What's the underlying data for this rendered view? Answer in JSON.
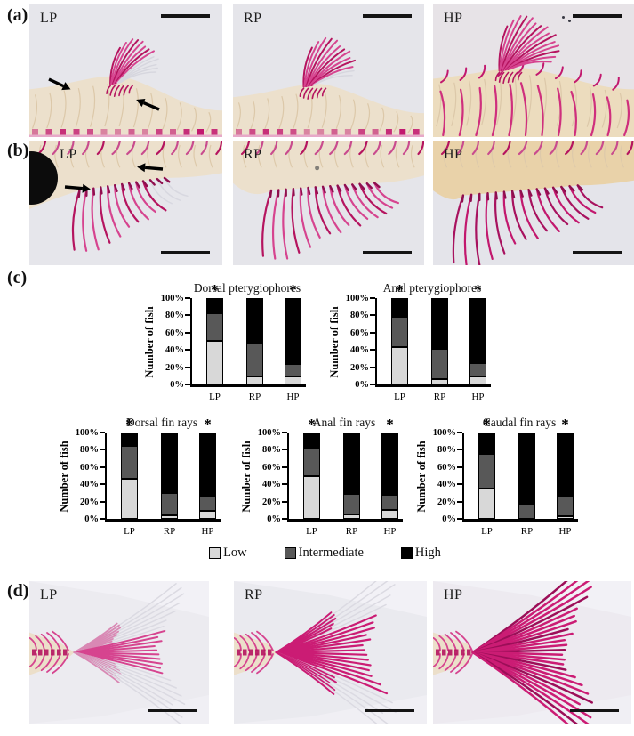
{
  "panels": {
    "a": {
      "letter": "(a)",
      "images": [
        {
          "label": "LP"
        },
        {
          "label": "RP"
        },
        {
          "label": "HP"
        }
      ]
    },
    "b": {
      "letter": "(b)",
      "images": [
        {
          "label": "LP"
        },
        {
          "label": "RP"
        },
        {
          "label": "HP"
        }
      ]
    },
    "c": {
      "letter": "(c)"
    },
    "d": {
      "letter": "(d)",
      "images": [
        {
          "label": "LP"
        },
        {
          "label": "RP"
        },
        {
          "label": "HP"
        }
      ]
    }
  },
  "legend": {
    "items": [
      {
        "label": "Low",
        "color": "#d8d8d8"
      },
      {
        "label": "Intermediate",
        "color": "#585858"
      },
      {
        "label": "High",
        "color": "#000000"
      }
    ]
  },
  "chart_data": [
    {
      "type": "bar",
      "stacked": true,
      "title": "Dorsal pterygiophores",
      "ylabel": "Number of fish",
      "categories": [
        "LP",
        "RP",
        "HP"
      ],
      "yticks": [
        "0%",
        "20%",
        "40%",
        "60%",
        "80%",
        "100%"
      ],
      "ylim": [
        0,
        100
      ],
      "series": [
        {
          "name": "Low",
          "values": [
            50,
            9,
            9
          ]
        },
        {
          "name": "Intermediate",
          "values": [
            32,
            39,
            15
          ]
        },
        {
          "name": "High",
          "values": [
            18,
            52,
            76
          ]
        }
      ],
      "significance": [
        "*",
        "",
        "*"
      ]
    },
    {
      "type": "bar",
      "stacked": true,
      "title": "Anal pterygiophores",
      "ylabel": "Number of fish",
      "categories": [
        "LP",
        "RP",
        "HP"
      ],
      "yticks": [
        "0%",
        "20%",
        "40%",
        "60%",
        "80%",
        "100%"
      ],
      "ylim": [
        0,
        100
      ],
      "series": [
        {
          "name": "Low",
          "values": [
            43,
            6,
            9
          ]
        },
        {
          "name": "Intermediate",
          "values": [
            35,
            35,
            16
          ]
        },
        {
          "name": "High",
          "values": [
            22,
            59,
            75
          ]
        }
      ],
      "significance": [
        "*",
        "",
        "*"
      ]
    },
    {
      "type": "bar",
      "stacked": true,
      "title": "Dorsal fin rays",
      "ylabel": "Number of fish",
      "categories": [
        "LP",
        "RP",
        "HP"
      ],
      "yticks": [
        "0%",
        "20%",
        "40%",
        "60%",
        "80%",
        "100%"
      ],
      "ylim": [
        0,
        100
      ],
      "series": [
        {
          "name": "Low",
          "values": [
            46,
            4,
            9
          ]
        },
        {
          "name": "Intermediate",
          "values": [
            39,
            26,
            18
          ]
        },
        {
          "name": "High",
          "values": [
            15,
            70,
            73
          ]
        }
      ],
      "significance": [
        "*",
        "",
        "*"
      ]
    },
    {
      "type": "bar",
      "stacked": true,
      "title": "Anal fin rays",
      "ylabel": "Number of fish",
      "categories": [
        "LP",
        "RP",
        "HP"
      ],
      "yticks": [
        "0%",
        "20%",
        "40%",
        "60%",
        "80%",
        "100%"
      ],
      "ylim": [
        0,
        100
      ],
      "series": [
        {
          "name": "Low",
          "values": [
            49,
            5,
            10
          ]
        },
        {
          "name": "Intermediate",
          "values": [
            33,
            24,
            18
          ]
        },
        {
          "name": "High",
          "values": [
            18,
            71,
            72
          ]
        }
      ],
      "significance": [
        "*",
        "",
        "*"
      ]
    },
    {
      "type": "bar",
      "stacked": true,
      "title": "Caudal fin rays",
      "ylabel": "Number of fish",
      "categories": [
        "LP",
        "RP",
        "HP"
      ],
      "yticks": [
        "0%",
        "20%",
        "40%",
        "60%",
        "80%",
        "100%"
      ],
      "ylim": [
        0,
        100
      ],
      "series": [
        {
          "name": "Low",
          "values": [
            35,
            0,
            3
          ]
        },
        {
          "name": "Intermediate",
          "values": [
            40,
            18,
            24
          ]
        },
        {
          "name": "High",
          "values": [
            25,
            82,
            73
          ]
        }
      ],
      "significance": [
        "*",
        "",
        "*"
      ]
    }
  ],
  "colors": {
    "stain_deep": "#b5145f",
    "stain_mid": "#d6448f",
    "micro_background": "#e6e6eb",
    "body_beige": "#ece0cc",
    "axis": "#000000"
  }
}
